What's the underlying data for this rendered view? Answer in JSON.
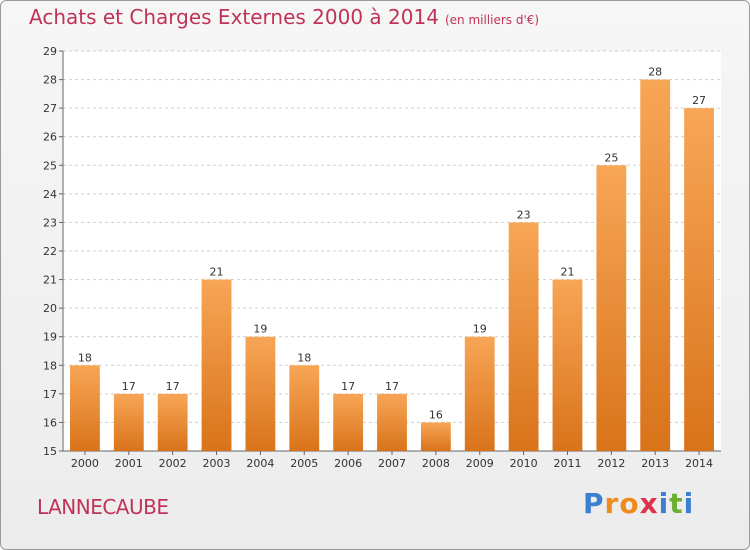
{
  "header": {
    "title": "Achats et Charges Externes 2000 à 2014",
    "subtitle": "(en milliers d'€)"
  },
  "footer": {
    "commune": "LANNECAUBE",
    "logo_letters": [
      "P",
      "r",
      "o",
      "x",
      "i",
      "t",
      "i"
    ],
    "logo_colors": [
      "#3a7fd0",
      "#f08a1c",
      "#f08a1c",
      "#e0324c",
      "#3a7fd0",
      "#6ab02e",
      "#3a7fd0"
    ]
  },
  "colors": {
    "bar_top": "#f7a656",
    "bar_bottom": "#d9731a",
    "label": "#333333",
    "grid": "#cfcfcf"
  },
  "chart_data": {
    "type": "bar",
    "categories": [
      "2000",
      "2001",
      "2002",
      "2003",
      "2004",
      "2005",
      "2006",
      "2007",
      "2008",
      "2009",
      "2010",
      "2011",
      "2012",
      "2013",
      "2014"
    ],
    "values": [
      18,
      17,
      17,
      21,
      19,
      18,
      17,
      17,
      16,
      19,
      23,
      21,
      25,
      28,
      27
    ],
    "value_labels": [
      "18",
      "17",
      "17",
      "21",
      "19",
      "18",
      "17",
      "17",
      "16",
      "19",
      "23",
      "21",
      "25",
      "28",
      "27"
    ],
    "y_ticks": [
      "15",
      "16",
      "17",
      "18",
      "19",
      "20",
      "21",
      "22",
      "23",
      "24",
      "25",
      "26",
      "27",
      "28",
      "29"
    ],
    "ylim": [
      15,
      29
    ],
    "grid": true
  }
}
